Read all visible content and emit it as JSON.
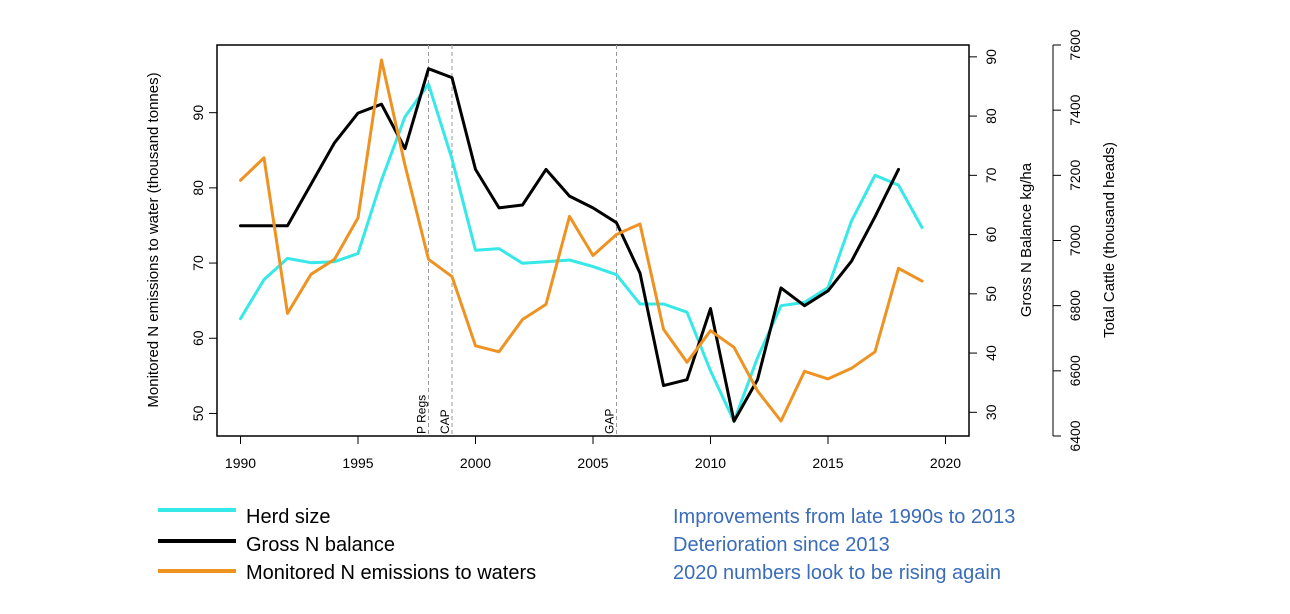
{
  "chart_data": {
    "type": "line",
    "title": "",
    "xlabel": "",
    "x_ticks": [
      1990,
      1995,
      2000,
      2005,
      2010,
      2015,
      2020
    ],
    "xlim": [
      1989.0,
      2021.0
    ],
    "axes": {
      "left": {
        "label": "Monitored N emissions to water (thousand tonnes)",
        "ticks": [
          50,
          60,
          70,
          80,
          90
        ],
        "range": [
          47,
          99
        ]
      },
      "right1": {
        "label": "Gross N Balance kg/ha",
        "ticks": [
          30,
          40,
          50,
          60,
          70,
          80,
          90
        ],
        "range": [
          26,
          92
        ]
      },
      "right2": {
        "label": "Total Cattle (thousand heads)",
        "ticks": [
          6400,
          6600,
          6800,
          7000,
          7200,
          7400,
          7600
        ],
        "range": [
          6400,
          7600
        ]
      }
    },
    "vlines": [
      {
        "x": 1998,
        "label": "P Regs"
      },
      {
        "x": 1999,
        "label": "CAP"
      },
      {
        "x": 2006,
        "label": "GAP"
      }
    ],
    "series": [
      {
        "name": "Herd size",
        "axis": "right2",
        "color": "#37e8e8",
        "x": [
          1990,
          1991,
          1992,
          1993,
          1994,
          1995,
          1996,
          1997,
          1998,
          1999,
          2000,
          2001,
          2002,
          2003,
          2004,
          2005,
          2006,
          2007,
          2008,
          2009,
          2010,
          2011,
          2012,
          2013,
          2014,
          2015,
          2016,
          2017,
          2018,
          2019
        ],
        "values": [
          6760,
          6880,
          6945,
          6932,
          6935,
          6960,
          7185,
          7380,
          7480,
          7250,
          6970,
          6975,
          6930,
          6935,
          6940,
          6920,
          6895,
          6805,
          6805,
          6780,
          6600,
          6445,
          6640,
          6800,
          6810,
          6855,
          7060,
          7200,
          7170,
          7040
        ]
      },
      {
        "name": "Gross N balance",
        "axis": "right1",
        "color": "#000000",
        "x": [
          1990,
          1991,
          1992,
          1993,
          1994,
          1995,
          1996,
          1997,
          1998,
          1999,
          2000,
          2001,
          2002,
          2003,
          2004,
          2005,
          2006,
          2007,
          2008,
          2009,
          2010,
          2011,
          2012,
          2013,
          2014,
          2015,
          2016,
          2017,
          2018
        ],
        "values": [
          61.5,
          61.5,
          61.5,
          68.5,
          75.5,
          80.5,
          82,
          74.5,
          88,
          86.5,
          71,
          64.5,
          65,
          71,
          66.5,
          64.5,
          62,
          53.5,
          34.5,
          35.5,
          47.5,
          28.5,
          35.5,
          51,
          48,
          50.5,
          55.5,
          63,
          71
        ]
      },
      {
        "name": "Monitored N emissions to waters",
        "axis": "left",
        "color": "#ee9322",
        "x": [
          1990,
          1991,
          1992,
          1993,
          1994,
          1995,
          1996,
          1997,
          1998,
          1999,
          2000,
          2001,
          2002,
          2003,
          2004,
          2005,
          2006,
          2007,
          2008,
          2009,
          2010,
          2011,
          2012,
          2013,
          2014,
          2015,
          2016,
          2017,
          2018,
          2019
        ],
        "values": [
          81,
          84,
          63.3,
          68.5,
          70.5,
          76,
          97,
          83,
          70.5,
          68.2,
          59,
          58.2,
          62.5,
          64.5,
          76.2,
          71,
          73.8,
          75.2,
          61.2,
          56.8,
          61,
          58.8,
          53,
          49,
          55.6,
          54.6,
          56,
          58.2,
          69.3,
          67.6
        ]
      }
    ]
  },
  "legend": {
    "items": [
      {
        "label": "Herd size",
        "color": "#37e8e8"
      },
      {
        "label": "Gross N balance",
        "color": "#000000"
      },
      {
        "label": "Monitored N emissions to waters",
        "color": "#ee9322"
      }
    ]
  },
  "notes": {
    "color": "#3a6cb8",
    "lines": [
      "Improvements  from late 1990s to 2013",
      "Deterioration since 2013",
      "2020 numbers  look to be rising again"
    ]
  }
}
